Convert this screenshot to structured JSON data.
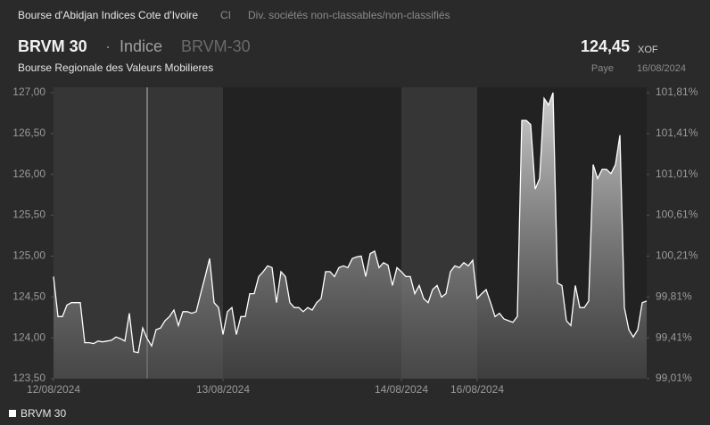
{
  "header": {
    "exchange": "Bourse d'Abidjan Indices Cote d'Ivoire",
    "country": "CI",
    "sector": "Div. sociétés non-classables/non-classifiés",
    "symbol": "BRVM 30",
    "separator": "·",
    "kind": "Indice",
    "code": "BRVM-30",
    "market": "Bourse Regionale des Valeurs Mobilieres",
    "price": "124,45",
    "currency": "XOF",
    "status": "Paye",
    "date": "16/08/2024"
  },
  "chart_data": {
    "type": "line",
    "series": [
      {
        "name": "BRVM 30",
        "color": "#ffffff",
        "values": [
          124.75,
          124.26,
          124.26,
          124.4,
          124.43,
          124.43,
          124.43,
          123.94,
          123.94,
          123.93,
          123.96,
          123.95,
          123.96,
          123.97,
          124.01,
          123.99,
          123.96,
          124.3,
          123.83,
          123.82,
          124.12,
          123.99,
          123.9,
          124.1,
          124.12,
          124.21,
          124.26,
          124.34,
          124.15,
          124.32,
          124.32,
          124.3,
          124.32,
          124.54,
          124.75,
          124.97,
          124.43,
          124.37,
          124.04,
          124.32,
          124.37,
          124.04,
          124.26,
          124.26,
          124.54,
          124.54,
          124.75,
          124.81,
          124.88,
          124.86,
          124.43,
          124.81,
          124.75,
          124.43,
          124.37,
          124.37,
          124.32,
          124.37,
          124.34,
          124.43,
          124.48,
          124.81,
          124.81,
          124.75,
          124.86,
          124.88,
          124.86,
          124.97,
          124.99,
          125.0,
          124.75,
          125.03,
          125.06,
          124.86,
          124.92,
          124.89,
          124.64,
          124.86,
          124.81,
          124.75,
          124.75,
          124.54,
          124.64,
          124.48,
          124.43,
          124.59,
          124.64,
          124.5,
          124.54,
          124.81,
          124.88,
          124.86,
          124.92,
          124.88,
          124.95,
          124.48,
          124.54,
          124.59,
          124.43,
          124.26,
          124.3,
          124.23,
          124.21,
          124.19,
          124.26,
          126.66,
          126.66,
          126.61,
          125.82,
          125.95,
          126.93,
          126.85,
          127.0,
          124.67,
          124.64,
          124.21,
          124.15,
          124.64,
          124.37,
          124.37,
          124.45,
          126.12,
          125.95,
          126.06,
          126.06,
          126.01,
          126.12,
          126.48,
          124.37,
          124.1,
          124.01,
          124.1,
          124.43,
          124.45
        ]
      }
    ],
    "xlim": [
      0,
      133
    ],
    "xticks": [
      {
        "value": 0,
        "label": "12/08/2024"
      },
      {
        "value": 38,
        "label": "13/08/2024"
      },
      {
        "value": 78,
        "label": "14/08/2024"
      },
      {
        "value": 95,
        "label": "16/08/2024"
      }
    ],
    "ylim": [
      123.5,
      127
    ],
    "yticks": [
      {
        "value": 123.5,
        "label": "123,50"
      },
      {
        "value": 124,
        "label": "124,00"
      },
      {
        "value": 124.5,
        "label": "124,50"
      },
      {
        "value": 125,
        "label": "125,00"
      },
      {
        "value": 125.5,
        "label": "125,50"
      },
      {
        "value": 126,
        "label": "126,00"
      },
      {
        "value": 126.5,
        "label": "126,50"
      },
      {
        "value": 127,
        "label": "127,00"
      }
    ],
    "y2lim": [
      99.01,
      101.81
    ],
    "y2ticks": [
      {
        "value": 99.01,
        "label": "99,01%"
      },
      {
        "value": 99.41,
        "label": "99,41%"
      },
      {
        "value": 99.81,
        "label": "99,81%"
      },
      {
        "value": 100.21,
        "label": "100,21%"
      },
      {
        "value": 100.61,
        "label": "100,61%"
      },
      {
        "value": 101.01,
        "label": "101,01%"
      },
      {
        "value": 101.41,
        "label": "101,41%"
      },
      {
        "value": 101.81,
        "label": "101,81%"
      }
    ],
    "legend": "bottom-left"
  }
}
